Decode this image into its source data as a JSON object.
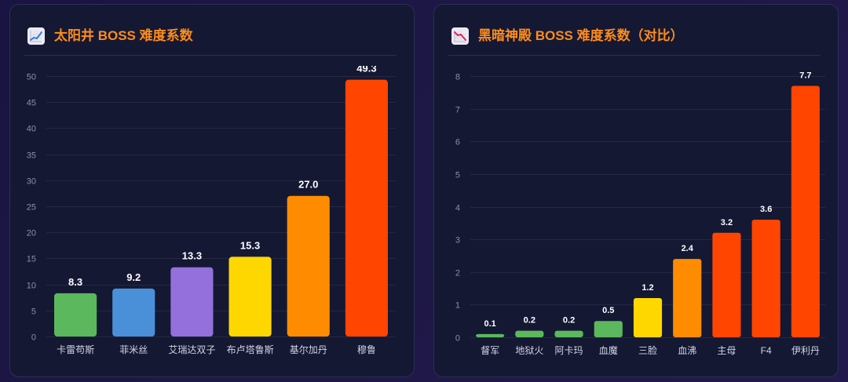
{
  "chart_data": [
    {
      "type": "bar",
      "title": "太阳井 BOSS 难度系数",
      "icon": "chart-increasing-icon",
      "categories": [
        "卡雷苟斯",
        "菲米丝",
        "艾瑞达双子",
        "布卢塔鲁斯",
        "基尔加丹",
        "穆鲁"
      ],
      "values": [
        8.3,
        9.2,
        13.3,
        15.3,
        27.0,
        49.3
      ],
      "bar_colors": [
        "#5cb85c",
        "#4a90d9",
        "#9370db",
        "#ffd700",
        "#ff8c00",
        "#ff4500"
      ],
      "xlabel": "",
      "ylabel": "",
      "ylim": [
        0,
        50
      ],
      "ytick_step": 5,
      "grid": "horizontal",
      "legend": "none"
    },
    {
      "type": "bar",
      "title": "黑暗神殿 BOSS 难度系数（对比）",
      "icon": "chart-decreasing-icon",
      "categories": [
        "督军",
        "地狱火",
        "阿卡玛",
        "血魔",
        "三脸",
        "血沸",
        "主母",
        "F4",
        "伊利丹"
      ],
      "values": [
        0.1,
        0.2,
        0.2,
        0.5,
        1.2,
        2.4,
        3.2,
        3.6,
        7.7
      ],
      "bar_colors": [
        "#5cb85c",
        "#5cb85c",
        "#5cb85c",
        "#5cb85c",
        "#ffd700",
        "#ff8c00",
        "#ff4500",
        "#ff4500",
        "#ff4500"
      ],
      "xlabel": "",
      "ylabel": "",
      "ylim": [
        0,
        8
      ],
      "ytick_step": 1,
      "grid": "horizontal",
      "legend": "none"
    }
  ],
  "colors": {
    "title": "#ff8c1a",
    "panel_background": "#141833"
  }
}
